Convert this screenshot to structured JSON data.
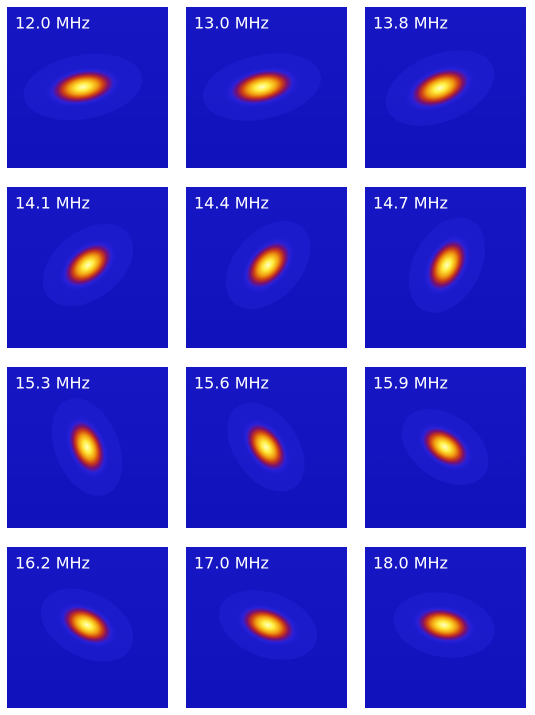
{
  "panels": [
    {
      "label": "12.0 MHz"
    },
    {
      "label": "13.0 MHz"
    },
    {
      "label": "13.8 MHz"
    },
    {
      "label": "14.1 MHz"
    },
    {
      "label": "14.4 MHz"
    },
    {
      "label": "14.7 MHz"
    },
    {
      "label": "15.3 MHz"
    },
    {
      "label": "15.6 MHz"
    },
    {
      "label": "15.9 MHz"
    },
    {
      "label": "16.2 MHz"
    },
    {
      "label": "17.0 MHz"
    },
    {
      "label": "18.0 MHz"
    }
  ]
}
